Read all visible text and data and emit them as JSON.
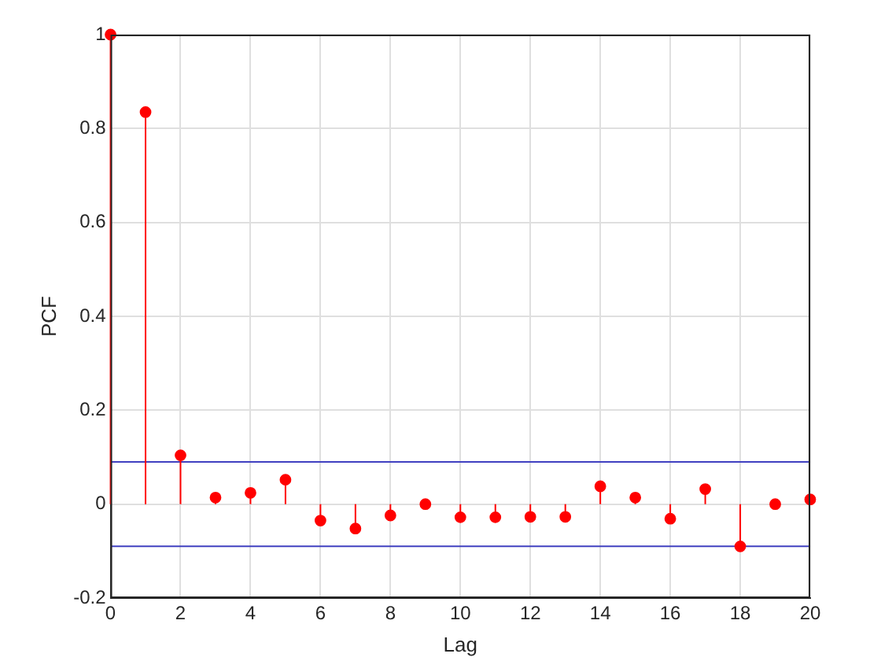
{
  "chart_data": {
    "type": "lollipop",
    "xlabel": "Lag",
    "ylabel": "PCF",
    "x": [
      0,
      1,
      2,
      3,
      4,
      5,
      6,
      7,
      8,
      9,
      10,
      11,
      12,
      13,
      14,
      15,
      16,
      17,
      18,
      19,
      20
    ],
    "series": [
      {
        "color": "#ff0000",
        "values": [
          1,
          0.835,
          0.104,
          0.014,
          0.024,
          0.052,
          -0.035,
          -0.052,
          -0.024,
          0,
          -0.028,
          -0.028,
          -0.027,
          -0.027,
          0.038,
          0.014,
          -0.031,
          0.032,
          -0.09,
          0,
          0.01
        ]
      }
    ],
    "xlim": [
      0,
      20
    ],
    "xticks": [
      0,
      2,
      4,
      6,
      8,
      10,
      12,
      14,
      16,
      18,
      20
    ],
    "ylim": [
      -0.2,
      1
    ],
    "yticks": [
      -0.2,
      0,
      0.2,
      0.4,
      0.6,
      0.8,
      1
    ],
    "ref_lines": [
      {
        "axis": "y",
        "value": 0.09,
        "color": "#4040c0"
      },
      {
        "axis": "y",
        "value": -0.09,
        "color": "#4040c0"
      }
    ],
    "grid": true,
    "legend": false,
    "marker": "circle"
  }
}
